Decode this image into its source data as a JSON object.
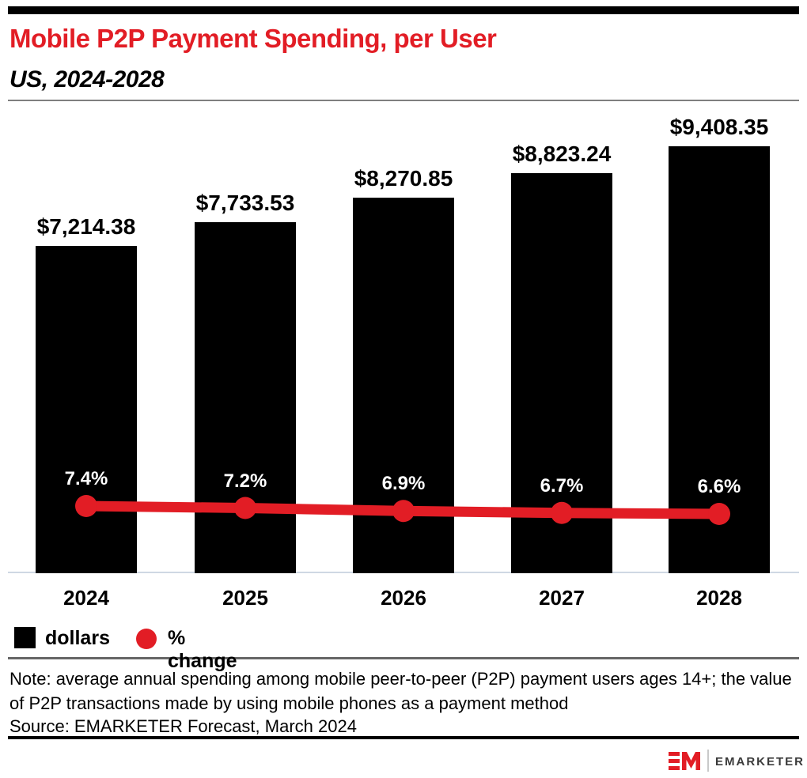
{
  "header": {
    "title": "Mobile P2P Payment Spending, per User",
    "subtitle": "US, 2024-2028"
  },
  "chart_data": {
    "type": "bar",
    "categories": [
      "2024",
      "2025",
      "2026",
      "2027",
      "2028"
    ],
    "series": [
      {
        "name": "dollars",
        "type": "bar",
        "color": "#000000",
        "values": [
          7214.38,
          7733.53,
          8270.85,
          8823.24,
          9408.35
        ],
        "labels": [
          "$7,214.38",
          "$7,733.53",
          "$8,270.85",
          "$8,823.24",
          "$9,408.35"
        ]
      },
      {
        "name": "% change",
        "type": "line",
        "color": "#e21d25",
        "values": [
          7.4,
          7.2,
          6.9,
          6.7,
          6.6
        ],
        "labels": [
          "7.4%",
          "7.2%",
          "6.9%",
          "6.7%",
          "6.6%"
        ]
      }
    ],
    "ylim": [
      0,
      9408.35
    ],
    "grid": false,
    "legend_position": "bottom-left"
  },
  "legend": {
    "items": [
      {
        "label": "dollars",
        "swatch": "black-square",
        "color": "#000000"
      },
      {
        "label": "% change",
        "swatch": "red-circle",
        "color": "#e21d25"
      }
    ]
  },
  "footnotes": {
    "note": "Note: average annual spending among mobile peer-to-peer (P2P) payment users ages 14+; the value of P2P transactions made by using mobile phones as a payment method",
    "source": "Source: EMARKETER Forecast, March 2024"
  },
  "footer": {
    "brand": "EMARKETER"
  },
  "colors": {
    "accent_red": "#e21d25",
    "bar_black": "#000000",
    "baseline_gray": "#cfd8e3",
    "rule_gray": "#666666"
  }
}
